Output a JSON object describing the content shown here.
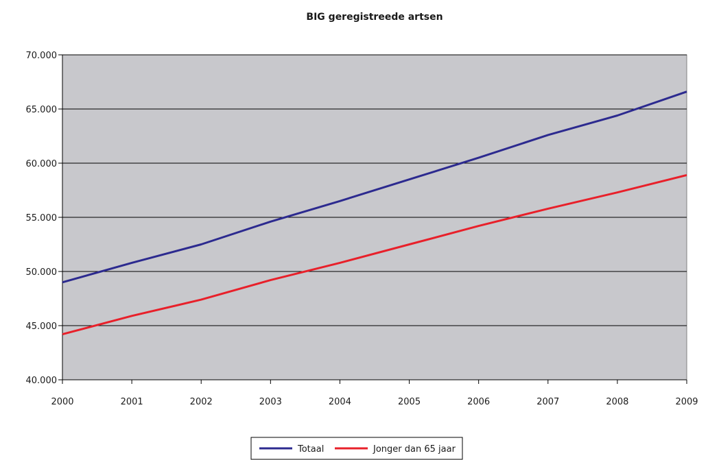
{
  "chart_data": {
    "type": "line",
    "title": "BIG geregistreede artsen",
    "xlabel": "",
    "ylabel": "",
    "x": [
      "2000",
      "2001",
      "2002",
      "2003",
      "2004",
      "2005",
      "2006",
      "2007",
      "2008",
      "2009"
    ],
    "ylim": [
      40000,
      70000
    ],
    "yticks": [
      40000,
      45000,
      50000,
      55000,
      60000,
      65000,
      70000
    ],
    "ytick_labels": [
      "40.000",
      "45.000",
      "50.000",
      "55.000",
      "60.000",
      "65.000",
      "70.000"
    ],
    "grid": true,
    "legend_position": "bottom",
    "plot_background": "#c8c8cc",
    "series": [
      {
        "name": "Totaal",
        "color": "#2c2a8f",
        "values": [
          49000,
          50800,
          52500,
          54600,
          56500,
          58500,
          60500,
          62600,
          64400,
          66600
        ]
      },
      {
        "name": "Jonger dan 65 jaar",
        "color": "#e8202a",
        "values": [
          44200,
          45900,
          47400,
          49200,
          50800,
          52500,
          54200,
          55800,
          57300,
          58900
        ]
      }
    ]
  }
}
